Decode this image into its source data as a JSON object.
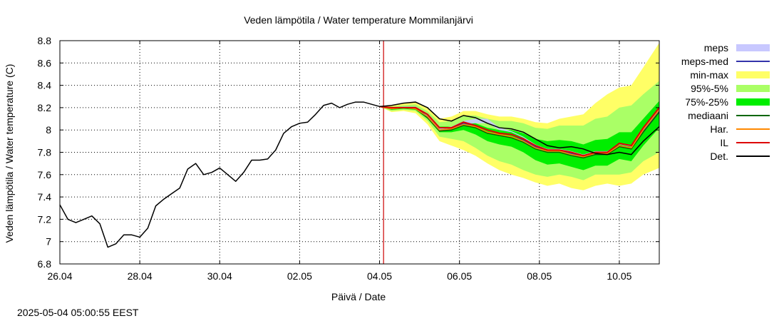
{
  "chart_data": {
    "type": "line",
    "title": "Veden lämpötila / Water temperature Mommilanjärvi",
    "xlabel": "Päivä / Date",
    "ylabel": "Veden lämpötila / Water temperature (C)",
    "timestamp": "2025-05-04 05:00:55 EEST",
    "xlim": [
      0,
      15
    ],
    "ylim": [
      6.8,
      8.8
    ],
    "x_unit": "days since 26.04",
    "x_tick_labels": [
      "26.04",
      "28.04",
      "30.04",
      "02.05",
      "04.05",
      "06.05",
      "08.05",
      "10.05"
    ],
    "y_ticks": [
      6.8,
      7,
      7.2,
      7.4,
      7.6,
      7.8,
      8,
      8.2,
      8.4,
      8.6,
      8.8
    ],
    "y_tick_labels": [
      "6.8",
      "7",
      "7.2",
      "7.4",
      "7.6",
      "7.8",
      "8",
      "8.2",
      "8.4",
      "8.6",
      "8.8"
    ],
    "grid": true,
    "legend_position": "right",
    "forecast_start": 8.1,
    "colors": {
      "meps": "#c8c8ff",
      "meps_med": "#3333aa",
      "minmax": "#ffff66",
      "p95_5": "#aaff66",
      "p75_25": "#00ee00",
      "mediaani": "#006600",
      "har": "#ff8800",
      "il": "#dd0000",
      "det": "#000000",
      "vline": "#cc0000",
      "grid": "#000000"
    },
    "legend": [
      {
        "key": "meps",
        "label": "meps",
        "kind": "band"
      },
      {
        "key": "meps_med",
        "label": "meps-med",
        "kind": "line"
      },
      {
        "key": "minmax",
        "label": "min-max",
        "kind": "band"
      },
      {
        "key": "p95_5",
        "label": "95%-5%",
        "kind": "band"
      },
      {
        "key": "p75_25",
        "label": "75%-25%",
        "kind": "band"
      },
      {
        "key": "mediaani",
        "label": "mediaani",
        "kind": "line"
      },
      {
        "key": "har",
        "label": "Har.",
        "kind": "line"
      },
      {
        "key": "il",
        "label": "IL",
        "kind": "line"
      },
      {
        "key": "det",
        "label": "Det.",
        "kind": "line"
      }
    ],
    "series": {
      "observed": {
        "name": "Det.",
        "x": [
          0,
          0.2,
          0.4,
          0.6,
          0.8,
          1.0,
          1.2,
          1.4,
          1.6,
          1.8,
          2.0,
          2.2,
          2.4,
          2.6,
          2.8,
          3.0,
          3.2,
          3.4,
          3.6,
          3.8,
          4.0,
          4.2,
          4.4,
          4.6,
          4.8,
          5.0,
          5.2,
          5.4,
          5.6,
          5.8,
          6.0,
          6.2,
          6.4,
          6.6,
          6.8,
          7.0,
          7.2,
          7.4,
          7.6,
          7.8,
          8.0
        ],
        "y": [
          7.33,
          7.2,
          7.17,
          7.2,
          7.23,
          7.16,
          6.95,
          6.98,
          7.06,
          7.06,
          7.04,
          7.12,
          7.32,
          7.38,
          7.43,
          7.48,
          7.65,
          7.7,
          7.6,
          7.62,
          7.66,
          7.6,
          7.54,
          7.62,
          7.73,
          7.73,
          7.74,
          7.82,
          7.97,
          8.03,
          8.06,
          8.07,
          8.14,
          8.22,
          8.24,
          8.2,
          8.23,
          8.25,
          8.25,
          8.23,
          8.21
        ]
      },
      "forecast": {
        "x": [
          8.0,
          8.3,
          8.6,
          8.9,
          9.2,
          9.5,
          9.8,
          10.1,
          10.4,
          10.7,
          11.0,
          11.3,
          11.6,
          11.9,
          12.2,
          12.5,
          12.8,
          13.1,
          13.4,
          13.7,
          14.0,
          14.3,
          14.6,
          15.0
        ],
        "det": [
          8.21,
          8.22,
          8.24,
          8.25,
          8.2,
          8.1,
          8.08,
          8.13,
          8.11,
          8.06,
          8.02,
          8.01,
          7.98,
          7.92,
          7.86,
          7.84,
          7.85,
          7.83,
          7.79,
          7.78,
          7.8,
          7.78,
          7.9,
          8.03
        ],
        "il": [
          8.21,
          8.2,
          8.2,
          8.2,
          8.14,
          8.02,
          8.02,
          8.07,
          8.04,
          8.0,
          7.97,
          7.96,
          7.92,
          7.86,
          7.82,
          7.82,
          7.8,
          7.77,
          7.8,
          7.8,
          7.88,
          7.86,
          8.02,
          8.2
        ],
        "har": [
          8.21,
          8.19,
          8.2,
          8.19,
          8.12,
          8.0,
          8.01,
          8.05,
          8.03,
          7.98,
          7.96,
          7.94,
          7.9,
          7.84,
          7.81,
          7.81,
          7.78,
          7.76,
          7.79,
          7.79,
          7.86,
          7.84,
          8.0,
          8.18
        ],
        "mediaani": [
          8.21,
          8.19,
          8.2,
          8.19,
          8.11,
          7.99,
          8.0,
          8.04,
          8.02,
          7.97,
          7.95,
          7.93,
          7.89,
          7.83,
          7.8,
          7.8,
          7.77,
          7.75,
          7.78,
          7.78,
          7.85,
          7.83,
          7.98,
          8.16
        ],
        "meps_med": [
          8.21,
          8.19,
          8.2,
          8.2,
          8.12,
          8.0,
          8.01,
          8.06,
          8.04,
          8.0,
          7.97,
          7.96,
          7.91,
          7.85,
          7.81,
          7.81,
          7.79,
          7.76,
          7.79,
          7.79,
          7.86,
          7.84,
          7.99,
          8.17
        ],
        "meps_lo": [
          8.21,
          8.19,
          8.2,
          8.2,
          8.12,
          8.0,
          8.01,
          8.05,
          8.06,
          8.06,
          8.0,
          7.98,
          7.93,
          7.86,
          7.82,
          7.82,
          7.8,
          7.77,
          7.8,
          7.8,
          7.87,
          7.85,
          8.0,
          8.18
        ],
        "meps_hi": [
          8.21,
          8.2,
          8.21,
          8.21,
          8.13,
          8.02,
          8.03,
          8.08,
          8.1,
          8.1,
          8.02,
          7.99,
          7.94,
          7.87,
          7.83,
          7.83,
          7.81,
          7.78,
          7.81,
          7.81,
          7.88,
          7.86,
          8.01,
          8.19
        ],
        "min": [
          8.21,
          8.16,
          8.17,
          8.15,
          8.05,
          7.9,
          7.86,
          7.82,
          7.77,
          7.7,
          7.64,
          7.6,
          7.57,
          7.53,
          7.5,
          7.52,
          7.48,
          7.46,
          7.5,
          7.52,
          7.5,
          7.52,
          7.6,
          7.66
        ],
        "p5": [
          8.21,
          8.17,
          8.18,
          8.17,
          8.08,
          7.94,
          7.92,
          7.9,
          7.84,
          7.77,
          7.72,
          7.69,
          7.64,
          7.6,
          7.58,
          7.6,
          7.58,
          7.55,
          7.6,
          7.6,
          7.6,
          7.62,
          7.72,
          7.8
        ],
        "p25": [
          8.21,
          8.18,
          8.19,
          8.18,
          8.1,
          7.98,
          7.98,
          8.0,
          7.96,
          7.9,
          7.87,
          7.85,
          7.8,
          7.73,
          7.69,
          7.7,
          7.67,
          7.64,
          7.68,
          7.68,
          7.74,
          7.72,
          7.86,
          8.02
        ],
        "p75": [
          8.21,
          8.2,
          8.21,
          8.21,
          8.14,
          8.03,
          8.03,
          8.08,
          8.06,
          8.02,
          8.0,
          8.0,
          7.97,
          7.92,
          7.9,
          7.91,
          7.9,
          7.87,
          7.91,
          7.92,
          7.98,
          7.98,
          8.1,
          8.26
        ],
        "p95": [
          8.21,
          8.21,
          8.22,
          8.23,
          8.17,
          8.07,
          8.08,
          8.13,
          8.13,
          8.1,
          8.08,
          8.08,
          8.06,
          8.02,
          8.01,
          8.04,
          8.04,
          8.04,
          8.1,
          8.12,
          8.2,
          8.22,
          8.32,
          8.44
        ],
        "max": [
          8.21,
          8.22,
          8.24,
          8.25,
          8.2,
          8.1,
          8.12,
          8.17,
          8.17,
          8.14,
          8.12,
          8.12,
          8.1,
          8.07,
          8.06,
          8.1,
          8.12,
          8.14,
          8.24,
          8.32,
          8.38,
          8.4,
          8.56,
          8.78
        ]
      }
    }
  }
}
